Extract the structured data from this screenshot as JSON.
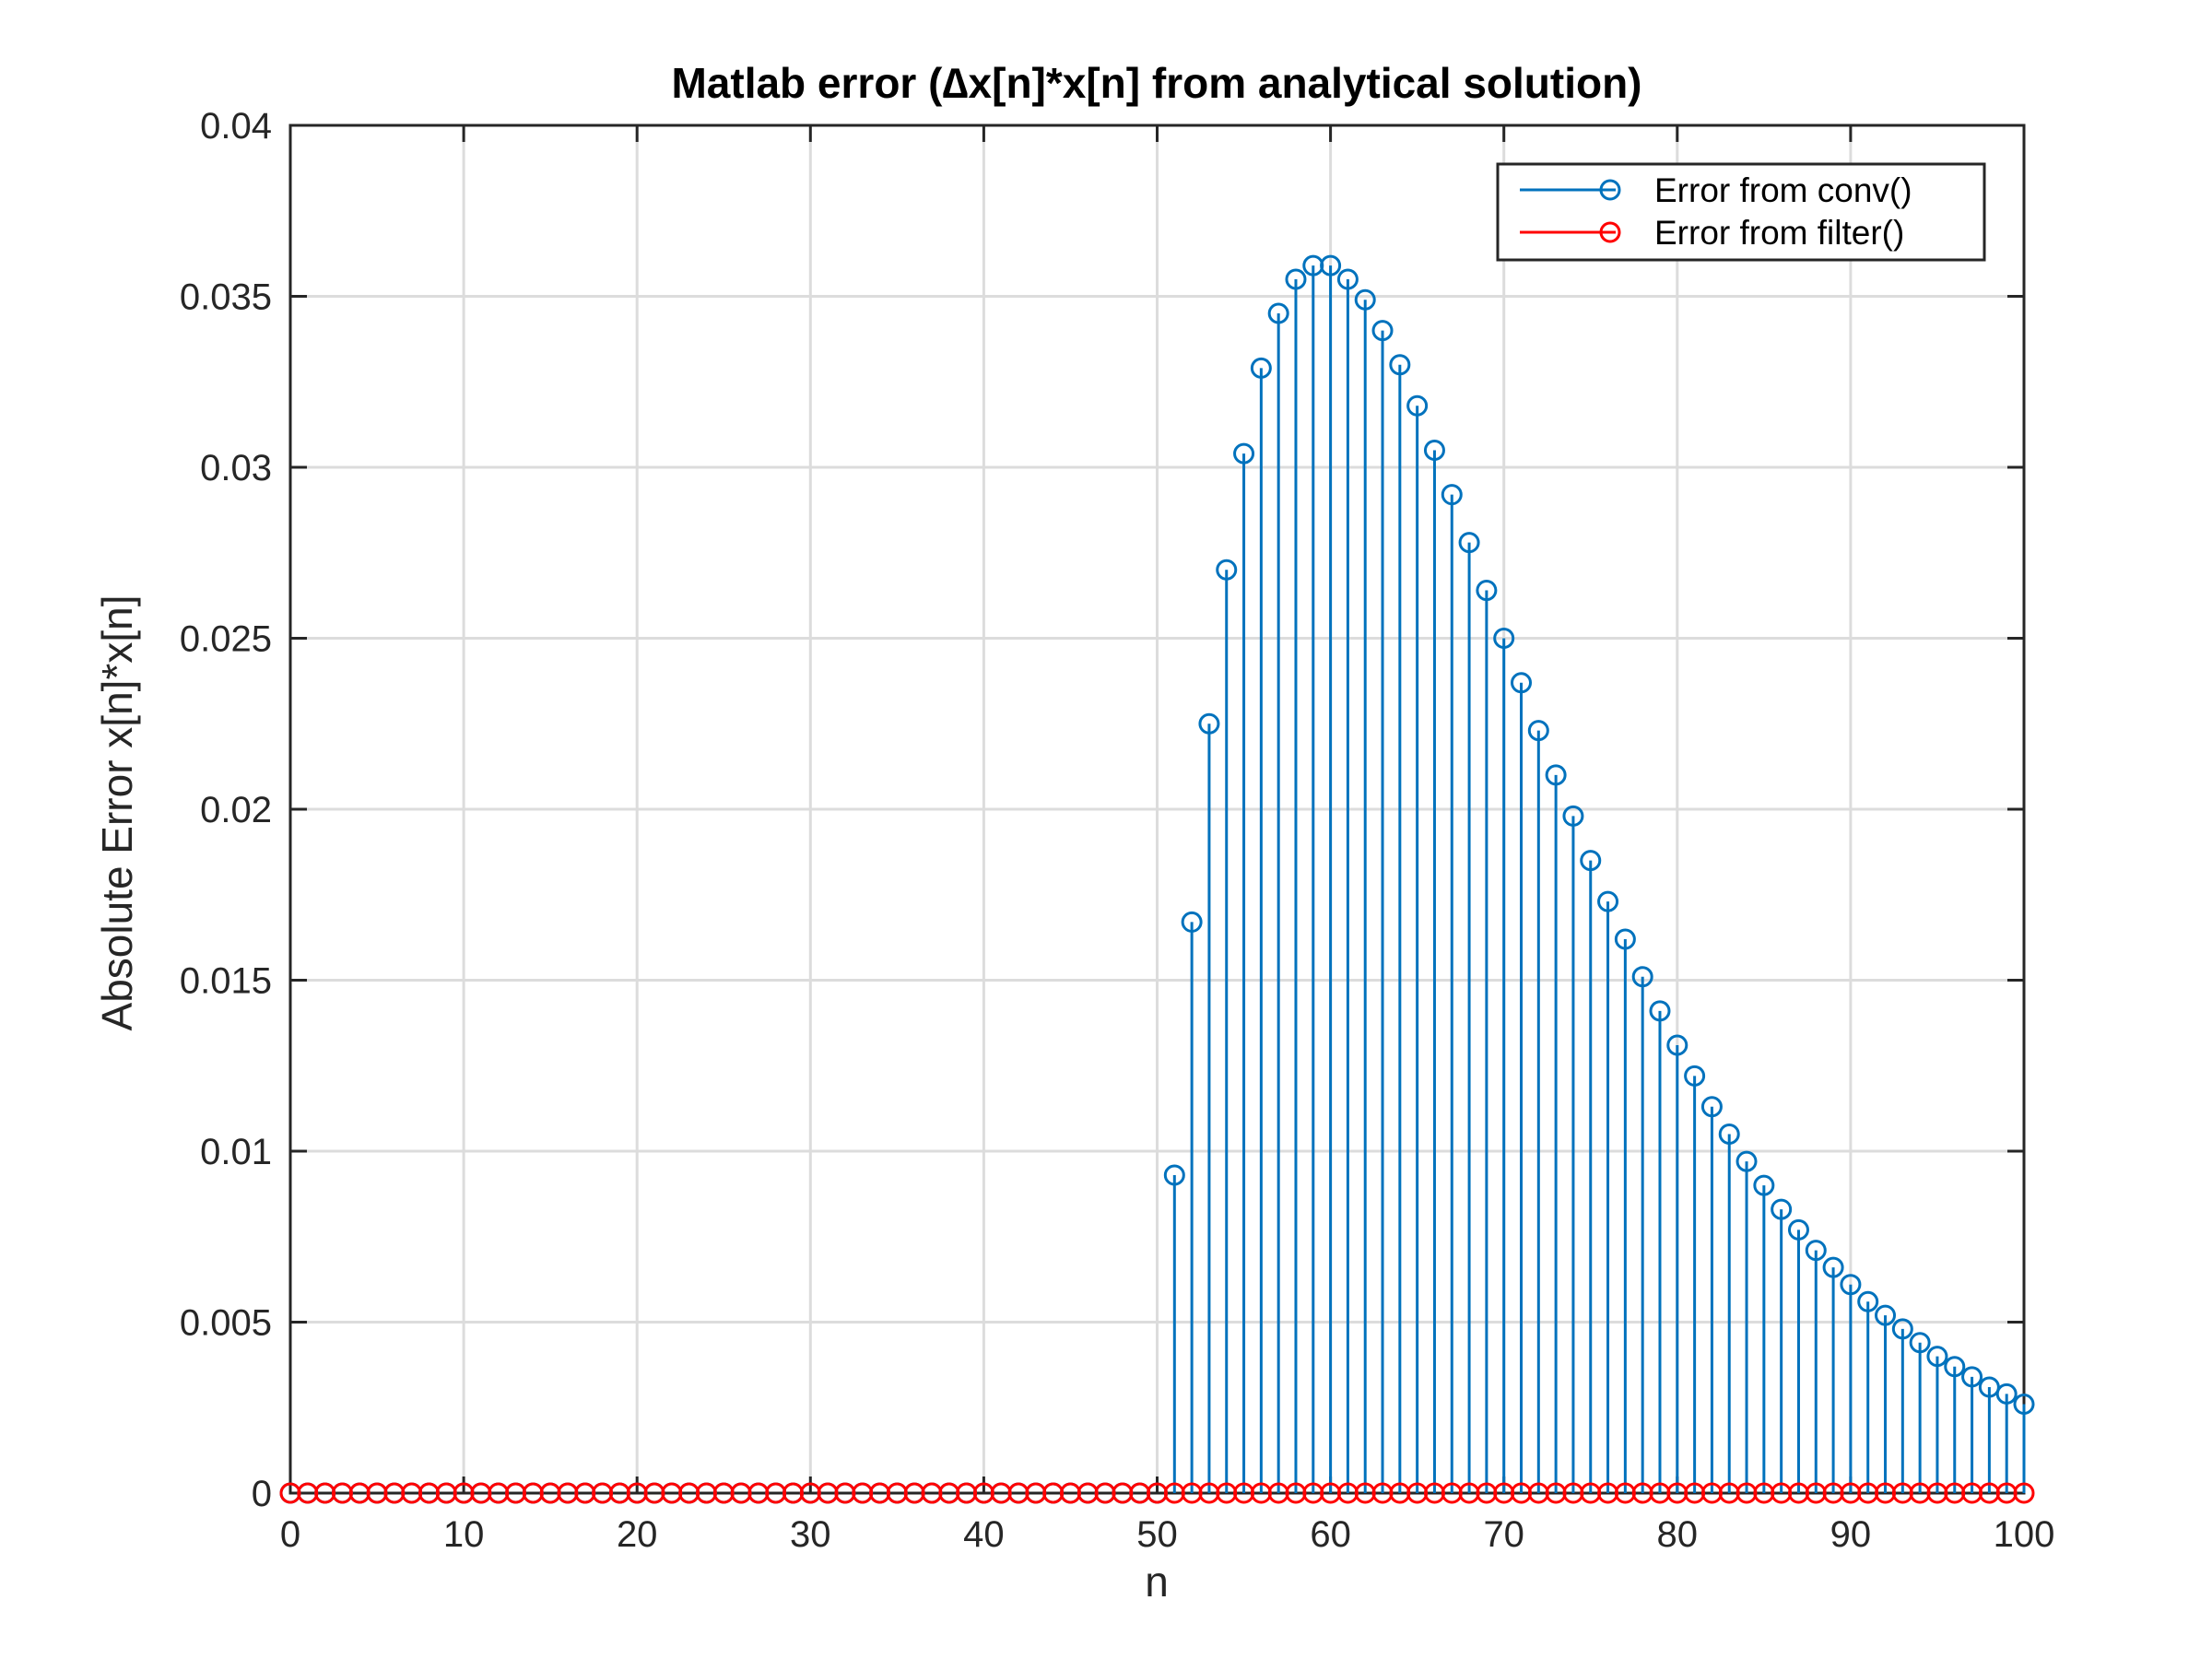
{
  "chart_data": {
    "type": "stem",
    "title": "Matlab error (∆x[n]*x[n] from analytical solution)",
    "xlabel": "n",
    "ylabel": "Absolute Error x[n]*x[n]",
    "xlim": [
      0,
      100
    ],
    "ylim": [
      0,
      0.04
    ],
    "grid": true,
    "legend_position": "top-right",
    "x_ticks": [
      "0",
      "10",
      "20",
      "30",
      "40",
      "50",
      "60",
      "70",
      "80",
      "90",
      "100"
    ],
    "y_ticks": [
      "0",
      "0.005",
      "0.01",
      "0.015",
      "0.02",
      "0.025",
      "0.03",
      "0.035",
      "0.04"
    ],
    "series": [
      {
        "name": "Error from conv()",
        "color": "#0072bd",
        "x": [
          0,
          1,
          2,
          3,
          4,
          5,
          6,
          7,
          8,
          9,
          10,
          11,
          12,
          13,
          14,
          15,
          16,
          17,
          18,
          19,
          20,
          21,
          22,
          23,
          24,
          25,
          26,
          27,
          28,
          29,
          30,
          31,
          32,
          33,
          34,
          35,
          36,
          37,
          38,
          39,
          40,
          41,
          42,
          43,
          44,
          45,
          46,
          47,
          48,
          49,
          50,
          51,
          52,
          53,
          54,
          55,
          56,
          57,
          58,
          59,
          60,
          61,
          62,
          63,
          64,
          65,
          66,
          67,
          68,
          69,
          70,
          71,
          72,
          73,
          74,
          75,
          76,
          77,
          78,
          79,
          80,
          81,
          82,
          83,
          84,
          85,
          86,
          87,
          88,
          89,
          90,
          91,
          92,
          93,
          94,
          95,
          96,
          97,
          98,
          99,
          100
        ],
        "values": [
          0,
          0,
          0,
          0,
          0,
          0,
          0,
          0,
          0,
          0,
          0,
          0,
          0,
          0,
          0,
          0,
          0,
          0,
          0,
          0,
          0,
          0,
          0,
          0,
          0,
          0,
          0,
          0,
          0,
          0,
          0,
          0,
          0,
          0,
          0,
          0,
          0,
          0,
          0,
          0,
          0,
          0,
          0,
          0,
          0,
          0,
          0,
          0,
          0,
          0,
          0,
          0.0093,
          0.0167,
          0.0225,
          0.027,
          0.0304,
          0.0329,
          0.0345,
          0.0355,
          0.0359,
          0.0359,
          0.0355,
          0.0349,
          0.034,
          0.033,
          0.0318,
          0.0305,
          0.0292,
          0.0278,
          0.0264,
          0.025,
          0.0237,
          0.0223,
          0.021,
          0.0198,
          0.0185,
          0.0173,
          0.0162,
          0.0151,
          0.0141,
          0.0131,
          0.0122,
          0.0113,
          0.0105,
          0.0097,
          0.009,
          0.0083,
          0.0077,
          0.0071,
          0.0066,
          0.0061,
          0.0056,
          0.0052,
          0.0048,
          0.0044,
          0.004,
          0.0037,
          0.0034,
          0.0031,
          0.0029,
          0.0026
        ]
      },
      {
        "name": "Error from filter()",
        "color": "#ff0000",
        "x": [
          0,
          1,
          2,
          3,
          4,
          5,
          6,
          7,
          8,
          9,
          10,
          11,
          12,
          13,
          14,
          15,
          16,
          17,
          18,
          19,
          20,
          21,
          22,
          23,
          24,
          25,
          26,
          27,
          28,
          29,
          30,
          31,
          32,
          33,
          34,
          35,
          36,
          37,
          38,
          39,
          40,
          41,
          42,
          43,
          44,
          45,
          46,
          47,
          48,
          49,
          50,
          51,
          52,
          53,
          54,
          55,
          56,
          57,
          58,
          59,
          60,
          61,
          62,
          63,
          64,
          65,
          66,
          67,
          68,
          69,
          70,
          71,
          72,
          73,
          74,
          75,
          76,
          77,
          78,
          79,
          80,
          81,
          82,
          83,
          84,
          85,
          86,
          87,
          88,
          89,
          90,
          91,
          92,
          93,
          94,
          95,
          96,
          97,
          98,
          99,
          100
        ],
        "values": [
          0,
          0,
          0,
          0,
          0,
          0,
          0,
          0,
          0,
          0,
          0,
          0,
          0,
          0,
          0,
          0,
          0,
          0,
          0,
          0,
          0,
          0,
          0,
          0,
          0,
          0,
          0,
          0,
          0,
          0,
          0,
          0,
          0,
          0,
          0,
          0,
          0,
          0,
          0,
          0,
          0,
          0,
          0,
          0,
          0,
          0,
          0,
          0,
          0,
          0,
          0,
          0,
          0,
          0,
          0,
          0,
          0,
          0,
          0,
          0,
          0,
          0,
          0,
          0,
          0,
          0,
          0,
          0,
          0,
          0,
          0,
          0,
          0,
          0,
          0,
          0,
          0,
          0,
          0,
          0,
          0,
          0,
          0,
          0,
          0,
          0,
          0,
          0,
          0,
          0,
          0,
          0,
          0,
          0,
          0,
          0,
          0,
          0,
          0,
          0,
          0
        ]
      }
    ]
  }
}
